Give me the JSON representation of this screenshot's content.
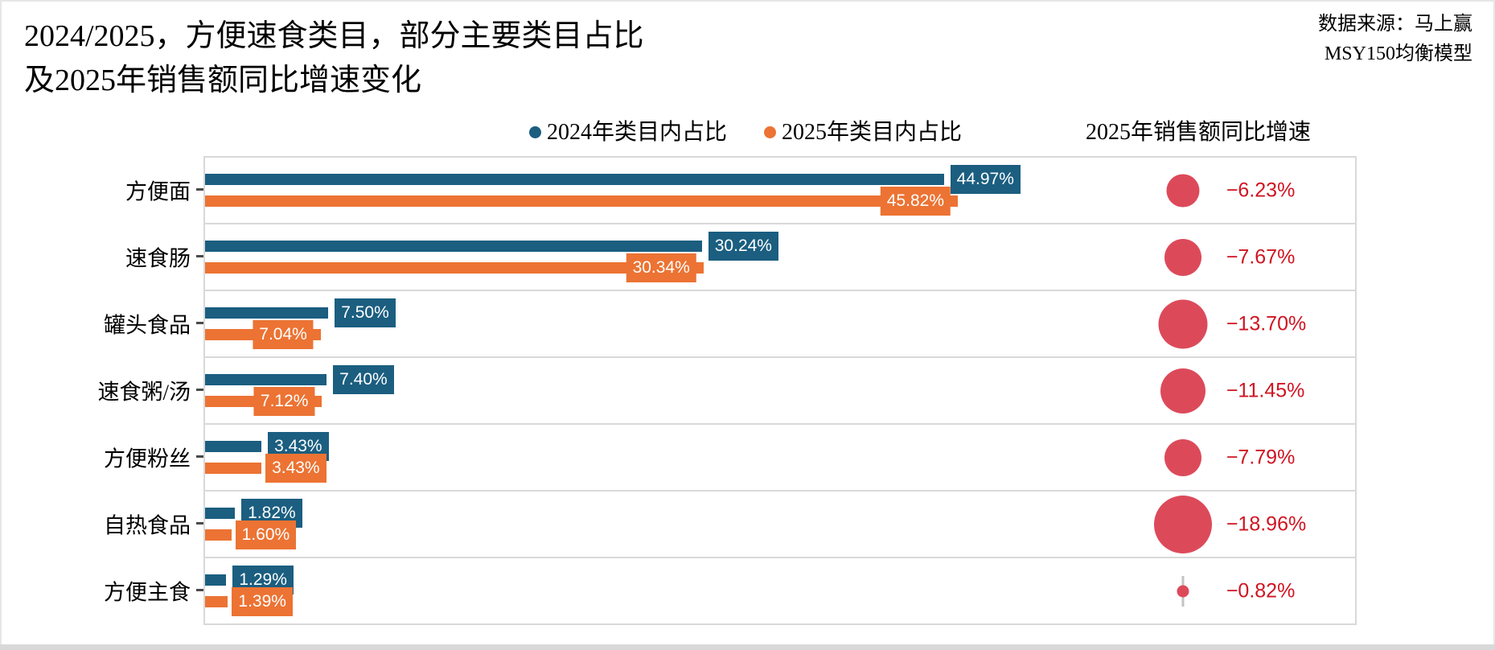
{
  "title": {
    "line1": "2024/2025，方便速食类目，部分主要类目占比",
    "line2": "及2025年销售额同比增速变化"
  },
  "source": {
    "line1": "数据来源：马上赢",
    "line2": "MSY150均衡模型"
  },
  "legend": {
    "label_2024": "2024年类目内占比",
    "label_2025": "2025年类目内占比",
    "bubble_header": "2025年销售额同比增速"
  },
  "colors": {
    "blue_2024": "#1b5e80",
    "orange_2025": "#ec7333",
    "bubble_red": "#dc4a5a",
    "growth_text_red": "#cf1421",
    "grid_gray": "#d9d9d9"
  },
  "chart_data": {
    "type": "bar",
    "orientation": "horizontal",
    "title": "2024/2025，方便速食类目，部分主要类目占比及2025年销售额同比增速变化",
    "categories": [
      "方便面",
      "速食肠",
      "罐头食品",
      "速食粥/汤",
      "方便粉丝",
      "自热食品",
      "方便主食"
    ],
    "series": [
      {
        "name": "2024年类目内占比",
        "color": "#1b5e80",
        "values": [
          44.97,
          30.24,
          7.5,
          7.4,
          3.43,
          1.82,
          1.29
        ],
        "labels": [
          "44.97%",
          "30.24%",
          "7.50%",
          "7.40%",
          "3.43%",
          "1.82%",
          "1.29%"
        ]
      },
      {
        "name": "2025年类目内占比",
        "color": "#ec7333",
        "values": [
          45.82,
          30.34,
          7.04,
          7.12,
          3.43,
          1.6,
          1.39
        ],
        "labels": [
          "45.82%",
          "30.34%",
          "7.04%",
          "7.12%",
          "3.43%",
          "1.60%",
          "1.39%"
        ]
      }
    ],
    "bubble_series": {
      "name": "2025年销售额同比增速",
      "color": "#dc4a5a",
      "values": [
        -6.23,
        -7.67,
        -13.7,
        -11.45,
        -7.79,
        -18.96,
        -0.82
      ],
      "labels": [
        "−6.23%",
        "−7.67%",
        "−13.70%",
        "−11.45%",
        "−7.79%",
        "−18.96%",
        "−0.82%"
      ]
    },
    "xlim": [
      0,
      70
    ],
    "grid": "horizontal row separators",
    "legend_position": "top-center",
    "value_label_style": "colored boxes with white text",
    "bubble_size_rule": "area proportional to |growth|"
  }
}
